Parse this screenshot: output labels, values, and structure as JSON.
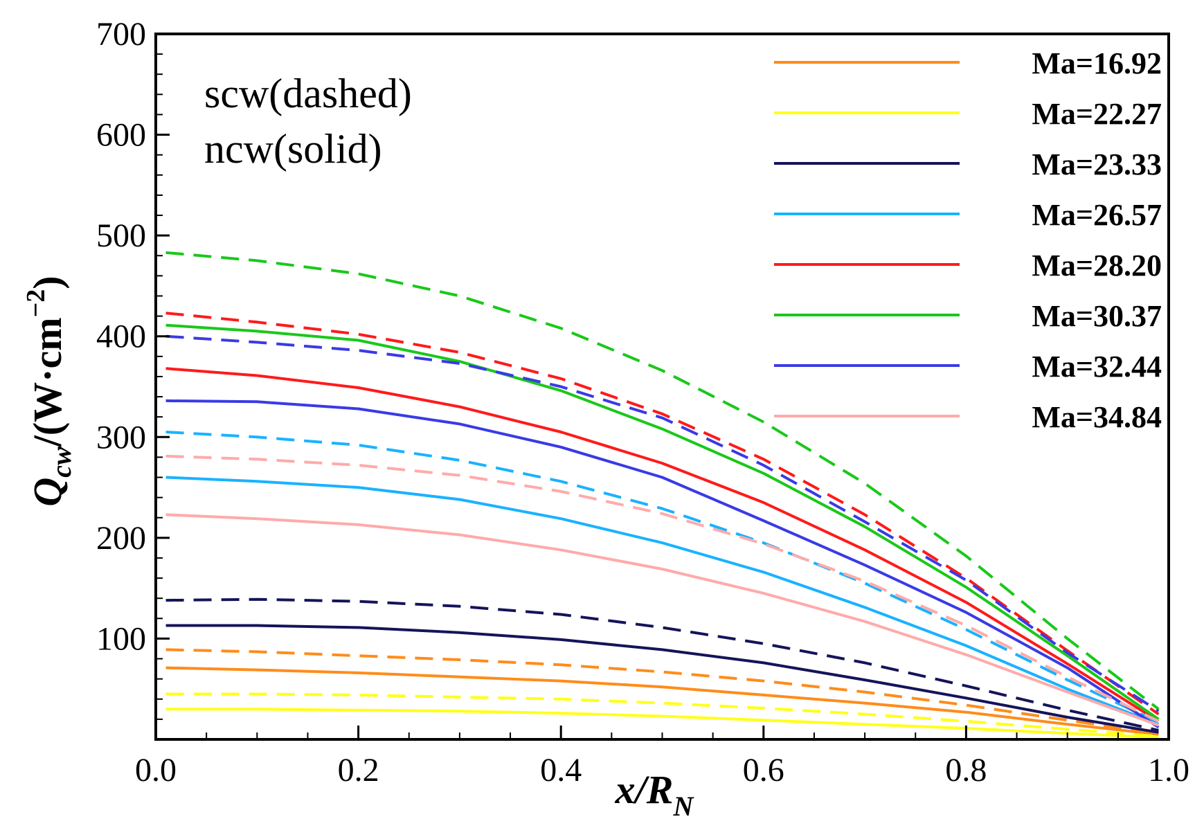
{
  "chart_data": {
    "type": "line",
    "title": "",
    "xlabel": {
      "main": "x",
      "sep": "/",
      "var": "R",
      "sub": "N"
    },
    "ylabel": {
      "q": "Q",
      "sub": "cw",
      "unit_prefix": "/(W·cm",
      "exp": "−2",
      "close": ")"
    },
    "xlim": [
      0.0,
      1.0
    ],
    "ylim": [
      0,
      700
    ],
    "xticks": [
      0.0,
      0.2,
      0.4,
      0.6,
      0.8,
      1.0
    ],
    "xtick_labels": [
      "0.0",
      "0.2",
      "0.4",
      "0.6",
      "0.8",
      "1.0"
    ],
    "yticks": [
      100,
      200,
      300,
      400,
      500,
      600,
      700
    ],
    "ytick_labels": [
      "100",
      "200",
      "300",
      "400",
      "500",
      "600",
      "700"
    ],
    "grid": false,
    "legend_position": "top-right",
    "annotations": [
      "scw(dashed)",
      "ncw(solid)"
    ],
    "x": [
      0.01,
      0.1,
      0.2,
      0.3,
      0.4,
      0.5,
      0.6,
      0.7,
      0.8,
      0.9,
      0.99
    ],
    "series": [
      {
        "name": "Ma=16.92",
        "color": "#ff8c1a",
        "solid": [
          71,
          69,
          66,
          62,
          58,
          52,
          44,
          36,
          27,
          15,
          5
        ],
        "dashed": [
          89,
          87,
          83,
          79,
          74,
          67,
          58,
          47,
          34,
          19,
          6
        ]
      },
      {
        "name": "Ma=22.27",
        "color": "#ffff1a",
        "solid": [
          30,
          30,
          29,
          28,
          26,
          23,
          19,
          15,
          11,
          6,
          2
        ],
        "dashed": [
          45,
          45,
          44,
          42,
          40,
          36,
          31,
          25,
          18,
          10,
          3
        ]
      },
      {
        "name": "Ma=23.33",
        "color": "#14145a",
        "solid": [
          113,
          113,
          111,
          106,
          99,
          89,
          76,
          59,
          41,
          22,
          7
        ],
        "dashed": [
          138,
          139,
          137,
          132,
          124,
          111,
          95,
          76,
          53,
          29,
          9
        ]
      },
      {
        "name": "Ma=26.57",
        "color": "#1ab2ff",
        "solid": [
          260,
          256,
          250,
          238,
          219,
          195,
          166,
          131,
          93,
          50,
          15
        ],
        "dashed": [
          305,
          300,
          292,
          277,
          256,
          229,
          195,
          155,
          109,
          59,
          17
        ]
      },
      {
        "name": "Ma=28.20",
        "color": "#ff1a1a",
        "solid": [
          368,
          361,
          349,
          330,
          305,
          274,
          235,
          188,
          136,
          75,
          18
        ],
        "dashed": [
          423,
          414,
          402,
          384,
          358,
          323,
          278,
          223,
          160,
          88,
          25
        ]
      },
      {
        "name": "Ma=30.37",
        "color": "#1ac81a",
        "solid": [
          411,
          405,
          396,
          375,
          346,
          308,
          264,
          211,
          151,
          83,
          20
        ],
        "dashed": [
          483,
          475,
          462,
          440,
          408,
          366,
          315,
          254,
          182,
          100,
          30
        ]
      },
      {
        "name": "Ma=32.44",
        "color": "#3a3ae6",
        "solid": [
          336,
          335,
          328,
          313,
          290,
          260,
          217,
          173,
          126,
          71,
          12
        ],
        "dashed": [
          400,
          394,
          386,
          373,
          350,
          319,
          272,
          216,
          158,
          86,
          28
        ]
      },
      {
        "name": "Ma=34.84",
        "color": "#ffaaaa",
        "solid": [
          223,
          219,
          213,
          203,
          188,
          169,
          145,
          117,
          84,
          47,
          14
        ],
        "dashed": [
          281,
          278,
          272,
          262,
          246,
          224,
          194,
          157,
          113,
          62,
          18
        ]
      }
    ]
  }
}
